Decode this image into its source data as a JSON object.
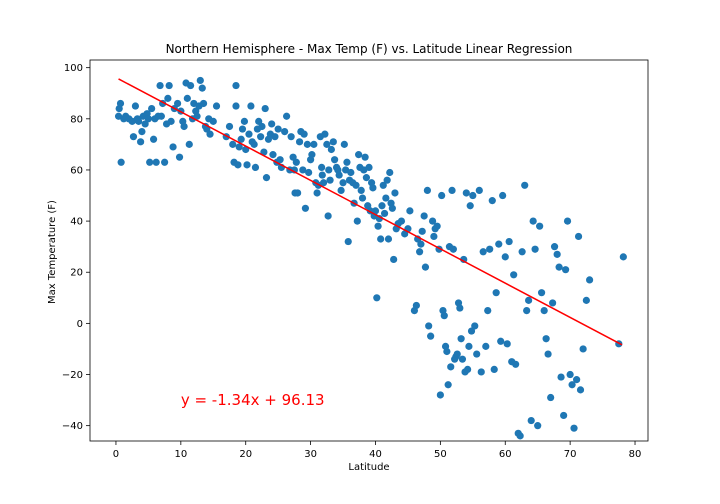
{
  "chart_data": {
    "type": "scatter",
    "title": "Northern Hemisphere - Max Temp (F) vs. Latitude Linear Regression",
    "xlabel": "Latitude",
    "ylabel": "Max Temperature (F)",
    "xlim": [
      -4,
      82
    ],
    "ylim": [
      -46,
      103
    ],
    "xticks": [
      0,
      10,
      20,
      30,
      40,
      50,
      60,
      70,
      80
    ],
    "yticks": [
      -40,
      -20,
      0,
      20,
      40,
      60,
      80,
      100
    ],
    "grid": false,
    "colors": {
      "points": "#1f77b4",
      "regression": "#ff0000",
      "annotation": "#ff0000"
    },
    "regression": {
      "slope": -1.34,
      "intercept": 96.13,
      "x_start": 0.4,
      "x_end": 78
    },
    "annotation": {
      "text": "y = -1.34x + 96.13",
      "x": 10,
      "y": -30
    },
    "points": [
      [
        0.4,
        81
      ],
      [
        0.5,
        84
      ],
      [
        0.7,
        86
      ],
      [
        0.8,
        63
      ],
      [
        1.2,
        80
      ],
      [
        1.5,
        81
      ],
      [
        2,
        80
      ],
      [
        2.5,
        79
      ],
      [
        2.7,
        73
      ],
      [
        3,
        85
      ],
      [
        3.3,
        80
      ],
      [
        3.5,
        79
      ],
      [
        3.8,
        71
      ],
      [
        4,
        75
      ],
      [
        4.2,
        81
      ],
      [
        4.5,
        78
      ],
      [
        4.8,
        82
      ],
      [
        5,
        80
      ],
      [
        5.2,
        63
      ],
      [
        5.5,
        84
      ],
      [
        5.8,
        72
      ],
      [
        6,
        80
      ],
      [
        6.2,
        63
      ],
      [
        6.5,
        81
      ],
      [
        6.8,
        93
      ],
      [
        7,
        81
      ],
      [
        7.2,
        86
      ],
      [
        7.5,
        63
      ],
      [
        7.8,
        78
      ],
      [
        8,
        88
      ],
      [
        8.2,
        93
      ],
      [
        8.5,
        79
      ],
      [
        8.8,
        69
      ],
      [
        9,
        84
      ],
      [
        9.5,
        86
      ],
      [
        9.8,
        65
      ],
      [
        10,
        83
      ],
      [
        10.3,
        79
      ],
      [
        10.5,
        77
      ],
      [
        10.8,
        94
      ],
      [
        11,
        88
      ],
      [
        11.3,
        70
      ],
      [
        11.5,
        93
      ],
      [
        11.8,
        80
      ],
      [
        12,
        86
      ],
      [
        12.3,
        83
      ],
      [
        12.5,
        81
      ],
      [
        12.8,
        85
      ],
      [
        13,
        95
      ],
      [
        13.3,
        92
      ],
      [
        13.5,
        86
      ],
      [
        13.8,
        77
      ],
      [
        14,
        76
      ],
      [
        14.3,
        80
      ],
      [
        14.5,
        74
      ],
      [
        15,
        79
      ],
      [
        15.5,
        85
      ],
      [
        17,
        73
      ],
      [
        17.5,
        77
      ],
      [
        18,
        70
      ],
      [
        18.2,
        63
      ],
      [
        18.5,
        85
      ],
      [
        18.5,
        93
      ],
      [
        18.8,
        62
      ],
      [
        19,
        69
      ],
      [
        19.3,
        72
      ],
      [
        19.5,
        76
      ],
      [
        19.8,
        79
      ],
      [
        20,
        68
      ],
      [
        20.2,
        62
      ],
      [
        20.5,
        74
      ],
      [
        20.8,
        85
      ],
      [
        21,
        71
      ],
      [
        21.3,
        70
      ],
      [
        21.5,
        61
      ],
      [
        21.8,
        76
      ],
      [
        22,
        79
      ],
      [
        22.3,
        73
      ],
      [
        22.5,
        77
      ],
      [
        22.8,
        67
      ],
      [
        23,
        84
      ],
      [
        23.2,
        57
      ],
      [
        23.5,
        72
      ],
      [
        23.8,
        74
      ],
      [
        24,
        78
      ],
      [
        24.2,
        66
      ],
      [
        24.5,
        73
      ],
      [
        24.8,
        63
      ],
      [
        25,
        76
      ],
      [
        25.3,
        64
      ],
      [
        25.5,
        61
      ],
      [
        26,
        75
      ],
      [
        26.3,
        81
      ],
      [
        26.8,
        60
      ],
      [
        27,
        73
      ],
      [
        27.3,
        65
      ],
      [
        27.5,
        60
      ],
      [
        27.6,
        51
      ],
      [
        27.8,
        63
      ],
      [
        28,
        51
      ],
      [
        28.3,
        71
      ],
      [
        28.5,
        75
      ],
      [
        28.8,
        60
      ],
      [
        29,
        74
      ],
      [
        29.2,
        45
      ],
      [
        29.5,
        70
      ],
      [
        29.7,
        59
      ],
      [
        30,
        64
      ],
      [
        30.2,
        66
      ],
      [
        30.5,
        70
      ],
      [
        30.8,
        55
      ],
      [
        31,
        51
      ],
      [
        31.2,
        54
      ],
      [
        31.5,
        73
      ],
      [
        31.7,
        61
      ],
      [
        31.8,
        58
      ],
      [
        32,
        55
      ],
      [
        32.2,
        74
      ],
      [
        32.5,
        70
      ],
      [
        32.7,
        42
      ],
      [
        32.8,
        60
      ],
      [
        33,
        56
      ],
      [
        33.2,
        68
      ],
      [
        33.5,
        71
      ],
      [
        33.7,
        64
      ],
      [
        34,
        61
      ],
      [
        34.2,
        60
      ],
      [
        34.4,
        58
      ],
      [
        34.7,
        52
      ],
      [
        35,
        55
      ],
      [
        35.2,
        70
      ],
      [
        35.4,
        60
      ],
      [
        35.6,
        63
      ],
      [
        35.8,
        32
      ],
      [
        36,
        56
      ],
      [
        36.2,
        59
      ],
      [
        36.5,
        55
      ],
      [
        36.7,
        47
      ],
      [
        37,
        54
      ],
      [
        37.2,
        40
      ],
      [
        37.4,
        66
      ],
      [
        37.6,
        61
      ],
      [
        37.8,
        52
      ],
      [
        38,
        49
      ],
      [
        38.2,
        60
      ],
      [
        38.4,
        65
      ],
      [
        38.6,
        57
      ],
      [
        38.8,
        46
      ],
      [
        39,
        61
      ],
      [
        39.2,
        44
      ],
      [
        39.4,
        55
      ],
      [
        39.6,
        53
      ],
      [
        39.8,
        42
      ],
      [
        40,
        44
      ],
      [
        40.2,
        10
      ],
      [
        40.4,
        38
      ],
      [
        40.6,
        41
      ],
      [
        40.8,
        33
      ],
      [
        41,
        46
      ],
      [
        41.2,
        54
      ],
      [
        41.4,
        43
      ],
      [
        41.6,
        49
      ],
      [
        41.8,
        56
      ],
      [
        42,
        33
      ],
      [
        42.2,
        59
      ],
      [
        42.4,
        47
      ],
      [
        42.6,
        45
      ],
      [
        42.8,
        25
      ],
      [
        43,
        51
      ],
      [
        43.2,
        37
      ],
      [
        43.5,
        39
      ],
      [
        44,
        40
      ],
      [
        44.5,
        35
      ],
      [
        45,
        37
      ],
      [
        45.3,
        44
      ],
      [
        46,
        5
      ],
      [
        46.3,
        7
      ],
      [
        46.5,
        33
      ],
      [
        46.8,
        28
      ],
      [
        47,
        31
      ],
      [
        47.2,
        36
      ],
      [
        47.5,
        42
      ],
      [
        47.7,
        22
      ],
      [
        48,
        52
      ],
      [
        48.2,
        -1
      ],
      [
        48.5,
        -5
      ],
      [
        48.8,
        40
      ],
      [
        49,
        34
      ],
      [
        49.2,
        37
      ],
      [
        49.5,
        38
      ],
      [
        49.8,
        29
      ],
      [
        50,
        -28
      ],
      [
        50.2,
        50
      ],
      [
        50.4,
        5
      ],
      [
        50.6,
        3
      ],
      [
        50.8,
        -9
      ],
      [
        51,
        -11
      ],
      [
        51.2,
        -24
      ],
      [
        51.4,
        30
      ],
      [
        51.6,
        -17
      ],
      [
        51.8,
        52
      ],
      [
        52,
        29
      ],
      [
        52.2,
        -14
      ],
      [
        52.4,
        -13
      ],
      [
        52.6,
        -12
      ],
      [
        52.8,
        8
      ],
      [
        53,
        6
      ],
      [
        53.2,
        -6
      ],
      [
        53.4,
        -14
      ],
      [
        53.6,
        25
      ],
      [
        53.8,
        -19
      ],
      [
        54,
        51
      ],
      [
        54.2,
        -18
      ],
      [
        54.4,
        -9
      ],
      [
        54.6,
        46
      ],
      [
        54.8,
        -3
      ],
      [
        55,
        50
      ],
      [
        55.3,
        -1
      ],
      [
        55.6,
        -12
      ],
      [
        56,
        52
      ],
      [
        56.3,
        -19
      ],
      [
        56.6,
        28
      ],
      [
        57,
        -9
      ],
      [
        57.3,
        5
      ],
      [
        57.6,
        29
      ],
      [
        58,
        48
      ],
      [
        58.3,
        -18
      ],
      [
        58.6,
        12
      ],
      [
        59,
        31
      ],
      [
        59.3,
        -7
      ],
      [
        59.6,
        50
      ],
      [
        60,
        26
      ],
      [
        60.3,
        -8
      ],
      [
        60.6,
        32
      ],
      [
        61,
        -15
      ],
      [
        61.3,
        19
      ],
      [
        61.6,
        -16
      ],
      [
        62,
        -43
      ],
      [
        62.3,
        -44
      ],
      [
        62.6,
        28
      ],
      [
        63,
        54
      ],
      [
        63.3,
        5
      ],
      [
        63.6,
        9
      ],
      [
        64,
        -38
      ],
      [
        64.3,
        40
      ],
      [
        64.6,
        29
      ],
      [
        65,
        -40
      ],
      [
        65.3,
        38
      ],
      [
        65.6,
        12
      ],
      [
        66,
        5
      ],
      [
        66.3,
        -6
      ],
      [
        66.6,
        -12
      ],
      [
        67,
        -29
      ],
      [
        67.3,
        8
      ],
      [
        67.6,
        30
      ],
      [
        68,
        27
      ],
      [
        68.3,
        22
      ],
      [
        68.6,
        -21
      ],
      [
        69,
        -36
      ],
      [
        69.3,
        21
      ],
      [
        69.6,
        40
      ],
      [
        70,
        -20
      ],
      [
        70.3,
        -24
      ],
      [
        70.6,
        -41
      ],
      [
        71,
        -22
      ],
      [
        71.3,
        34
      ],
      [
        71.6,
        -26
      ],
      [
        72,
        -10
      ],
      [
        72.5,
        9
      ],
      [
        73,
        17
      ],
      [
        77.5,
        -8
      ],
      [
        78.2,
        26
      ]
    ]
  }
}
